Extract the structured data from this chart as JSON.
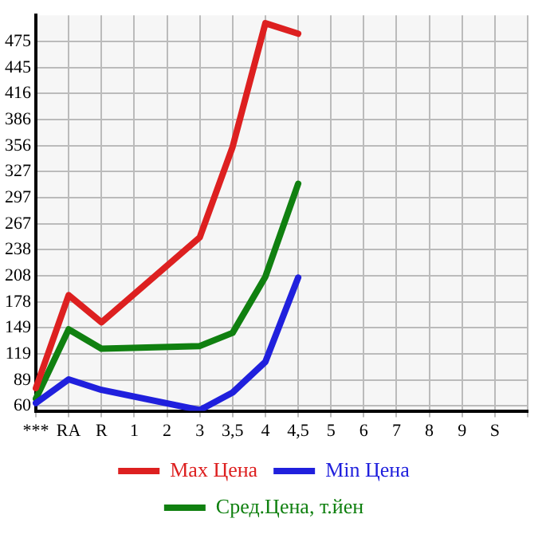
{
  "chart_data": {
    "type": "line",
    "categories": [
      "***",
      "RA",
      "R",
      "1",
      "2",
      "3",
      "3,5",
      "4",
      "4,5",
      "5",
      "6",
      "7",
      "8",
      "9",
      "S",
      null
    ],
    "series": [
      {
        "name": "Max Цена",
        "color": "#dd2020",
        "values": [
          80,
          186,
          155,
          null,
          null,
          252,
          355,
          496,
          484,
          null,
          null,
          null,
          null,
          null,
          null,
          null
        ]
      },
      {
        "name": "Min Цена",
        "color": "#2020dd",
        "values": [
          63,
          90,
          78,
          null,
          null,
          55,
          75,
          110,
          206,
          null,
          null,
          null,
          null,
          null,
          null,
          null
        ]
      },
      {
        "name": "Сред.Цена, т.йен",
        "color": "#108010",
        "values": [
          68,
          147,
          125,
          null,
          null,
          128,
          143,
          207,
          313,
          null,
          null,
          null,
          null,
          null,
          null,
          null
        ]
      }
    ],
    "ylim": [
      54,
      505
    ],
    "yticks": [
      60,
      89,
      119,
      149,
      178,
      208,
      238,
      267,
      297,
      327,
      356,
      386,
      416,
      445,
      475
    ],
    "grid": true,
    "legend": "bottom",
    "marker": "none",
    "line_style": "solid"
  }
}
